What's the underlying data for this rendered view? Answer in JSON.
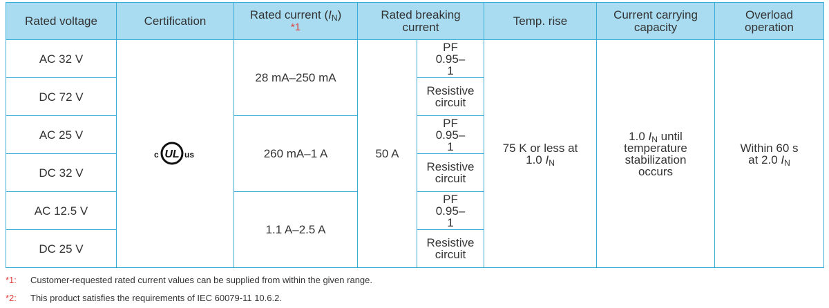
{
  "table": {
    "header": {
      "rated_voltage": "Rated voltage",
      "certification": "Certification",
      "rated_current": {
        "text": "Rated current (",
        "italic": "I",
        "sub": "N",
        "close": ")",
        "note": "*1"
      },
      "breaking_current": "Rated breaking current",
      "temp_rise": "Temp. rise",
      "carrying": "Current carrying capacity",
      "overload": "Overload operation"
    },
    "voltages": [
      "AC 32 V",
      "DC 72 V",
      "AC 25 V",
      "DC 32 V",
      "AC 12.5 V",
      "DC 25 V"
    ],
    "certification_mark": {
      "left": "c",
      "center": "UL",
      "right": "us"
    },
    "rated_currents": [
      "28 mA–250 mA",
      "260 mA–1 A",
      "1.1 A–2.5 A"
    ],
    "breaking_current": "50 A",
    "breaking_conditions": [
      "PF 0.95–1",
      "Resistive circuit",
      "PF 0.95–1",
      "Resistive circuit",
      "PF 0.95–1",
      "Resistive circuit"
    ],
    "temp_rise": {
      "text": "75 K or less at 1.0 ",
      "italic": "I",
      "sub": "N"
    },
    "carrying": {
      "lead": "1.0 ",
      "italic": "I",
      "sub": "N",
      "text": " until temperature stabilization occurs"
    },
    "overload": {
      "text": "Within 60 s at 2.0 ",
      "italic": "I",
      "sub": "N"
    }
  },
  "footnotes": [
    {
      "mark": "*1:",
      "text": "Customer-requested rated current values can be supplied from within the given range."
    },
    {
      "mark": "*2:",
      "text": "This product satisfies the requirements of IEC 60079-11 10.6.2."
    }
  ]
}
